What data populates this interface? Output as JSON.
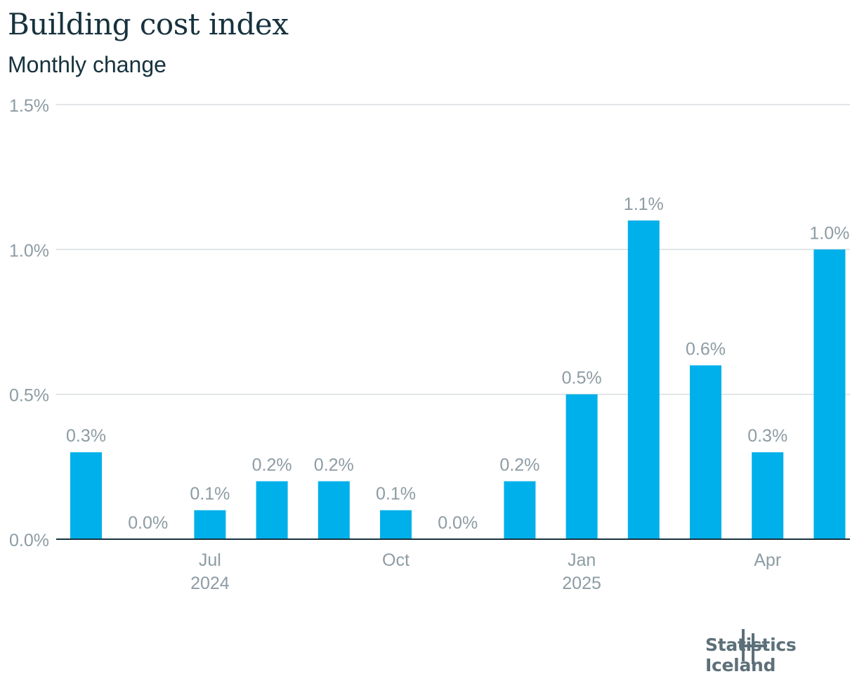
{
  "title": "Building cost index",
  "subtitle": "Monthly change",
  "logo": {
    "text": "Statistics Iceland",
    "icon": "statistics-iceland-logo-icon"
  },
  "colors": {
    "bar": "#00b0ea",
    "grid": "#d9dee0",
    "axis": "#17323e",
    "label": "#8d9ca3"
  },
  "chart_data": {
    "type": "bar",
    "ylim": [
      0,
      1.5
    ],
    "y_ticks": [
      "0.0%",
      "0.5%",
      "1.0%",
      "1.5%"
    ],
    "y_tick_values": [
      0,
      0.5,
      1.0,
      1.5
    ],
    "grid": true,
    "categories": [
      "2024-05",
      "2024-06",
      "2024-07",
      "2024-08",
      "2024-09",
      "2024-10",
      "2024-11",
      "2024-12",
      "2025-01",
      "2025-02",
      "2025-03",
      "2025-04",
      "2025-05"
    ],
    "values": [
      0.3,
      0.0,
      0.1,
      0.2,
      0.2,
      0.1,
      0.0,
      0.2,
      0.5,
      1.1,
      0.6,
      0.3,
      1.0
    ],
    "data_labels": [
      "0.3%",
      "0.0%",
      "0.1%",
      "0.2%",
      "0.2%",
      "0.1%",
      "0.0%",
      "0.2%",
      "0.5%",
      "1.1%",
      "0.6%",
      "0.3%",
      "1.0%"
    ],
    "x_ticks": [
      {
        "category": "2024-07",
        "label": "Jul",
        "sublabel": "2024"
      },
      {
        "category": "2024-10",
        "label": "Oct",
        "sublabel": ""
      },
      {
        "category": "2025-01",
        "label": "Jan",
        "sublabel": "2025"
      },
      {
        "category": "2025-04",
        "label": "Apr",
        "sublabel": ""
      }
    ]
  }
}
